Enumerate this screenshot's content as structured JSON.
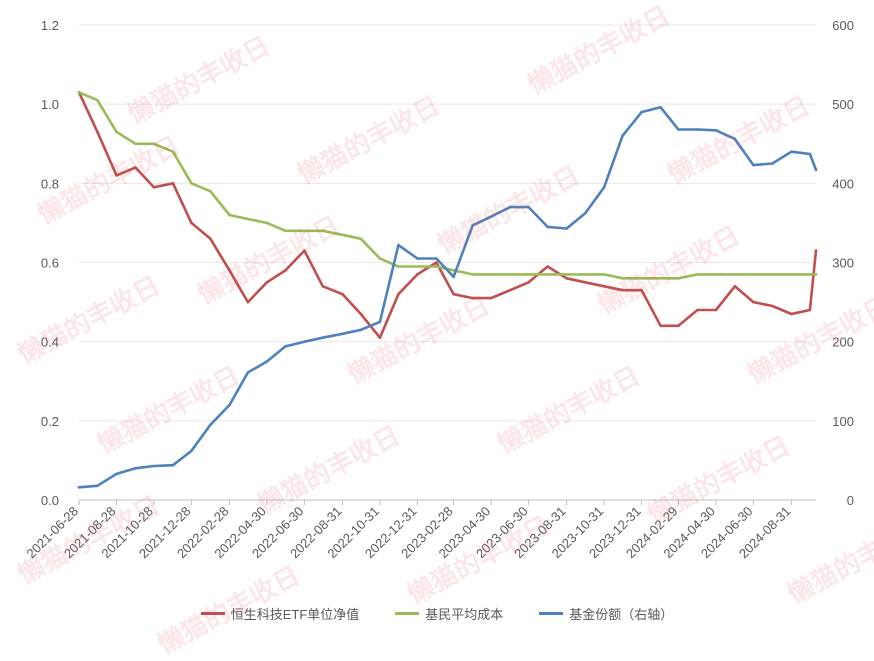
{
  "chart_data": {
    "type": "line",
    "x": [
      "2021-06-28",
      "2021-07-28",
      "2021-08-28",
      "2021-09-28",
      "2021-10-28",
      "2021-11-28",
      "2021-12-28",
      "2022-01-28",
      "2022-02-28",
      "2022-03-30",
      "2022-04-30",
      "2022-05-30",
      "2022-06-30",
      "2022-07-30",
      "2022-08-31",
      "2022-09-30",
      "2022-10-31",
      "2022-11-30",
      "2022-12-31",
      "2023-01-31",
      "2023-02-28",
      "2023-03-31",
      "2023-04-30",
      "2023-05-31",
      "2023-06-30",
      "2023-07-31",
      "2023-08-31",
      "2023-09-30",
      "2023-10-31",
      "2023-11-30",
      "2023-12-31",
      "2024-01-31",
      "2024-02-29",
      "2024-03-31",
      "2024-04-30",
      "2024-05-31",
      "2024-06-30",
      "2024-07-31",
      "2024-08-31",
      "2024-09-30",
      "2024-10-10"
    ],
    "x_tick_labels": [
      "2021-06-28",
      "2021-08-28",
      "2021-10-28",
      "2021-12-28",
      "2022-02-28",
      "2022-04-30",
      "2022-06-30",
      "2022-08-31",
      "2022-10-31",
      "2022-12-31",
      "2023-02-28",
      "2023-04-30",
      "2023-06-30",
      "2023-08-31",
      "2023-10-31",
      "2023-12-31",
      "2024-02-29",
      "2024-04-30",
      "2024-06-30",
      "2024-08-31"
    ],
    "left_axis": {
      "ylim": [
        0,
        1.2
      ],
      "ticks": [
        "0.0",
        "0.2",
        "0.4",
        "0.6",
        "0.8",
        "1.0",
        "1.2"
      ]
    },
    "right_axis": {
      "ylim": [
        0,
        600
      ],
      "ticks": [
        "0",
        "100",
        "200",
        "300",
        "400",
        "500",
        "600"
      ]
    },
    "series": [
      {
        "name": "恒生科技ETF单位净值",
        "axis": "left",
        "color": "#C0504D",
        "values": [
          1.03,
          0.93,
          0.82,
          0.84,
          0.79,
          0.8,
          0.7,
          0.66,
          0.58,
          0.5,
          0.55,
          0.58,
          0.63,
          0.54,
          0.52,
          0.47,
          0.41,
          0.52,
          0.57,
          0.6,
          0.52,
          0.51,
          0.51,
          0.53,
          0.55,
          0.59,
          0.56,
          0.55,
          0.54,
          0.53,
          0.53,
          0.44,
          0.44,
          0.48,
          0.48,
          0.54,
          0.5,
          0.49,
          0.47,
          0.48,
          0.63
        ]
      },
      {
        "name": "基民平均成本",
        "axis": "left",
        "color": "#9BBB59",
        "values": [
          1.03,
          1.01,
          0.93,
          0.9,
          0.9,
          0.88,
          0.8,
          0.78,
          0.72,
          0.71,
          0.7,
          0.68,
          0.68,
          0.68,
          0.67,
          0.66,
          0.61,
          0.59,
          0.59,
          0.59,
          0.58,
          0.57,
          0.57,
          0.57,
          0.57,
          0.57,
          0.57,
          0.57,
          0.57,
          0.56,
          0.56,
          0.56,
          0.56,
          0.57,
          0.57,
          0.57,
          0.57,
          0.57,
          0.57,
          0.57,
          0.57
        ]
      },
      {
        "name": "基金份额（右轴）",
        "axis": "right",
        "color": "#4F81BD",
        "values": [
          16,
          18,
          33,
          40,
          43,
          44,
          62,
          95,
          120,
          161,
          175,
          194,
          200,
          205,
          210,
          215,
          225,
          322,
          305,
          305,
          282,
          347,
          358,
          370,
          370,
          345,
          343,
          362,
          395,
          460,
          490,
          496,
          468,
          468,
          467,
          456,
          423,
          425,
          440,
          437,
          417
        ]
      }
    ]
  }
}
